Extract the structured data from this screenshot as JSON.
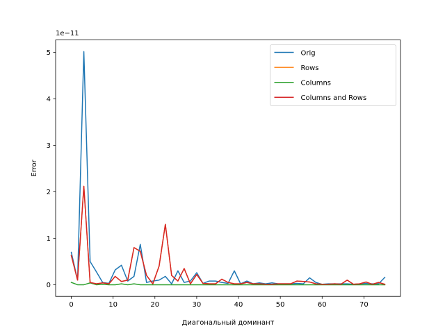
{
  "chart_data": {
    "type": "line",
    "title": "",
    "xlabel": "Диагональный доминант",
    "ylabel": "Error",
    "offset_text": "1e−11",
    "xlim": [
      -3.75,
      78.75
    ],
    "ylim": [
      -0.25,
      5.27
    ],
    "xticks": [
      0,
      10,
      20,
      30,
      40,
      50,
      60,
      70
    ],
    "yticks": [
      0,
      1,
      2,
      3,
      4,
      5
    ],
    "grid": false,
    "legend_position": "top-right",
    "x": [
      0,
      1.5,
      3,
      4.5,
      6,
      7.5,
      9,
      10.5,
      12,
      13.5,
      15,
      16.5,
      18,
      19.5,
      21,
      22.5,
      24,
      25.5,
      27,
      28.5,
      30,
      31.5,
      33,
      34.5,
      36,
      37.5,
      39,
      40.5,
      42,
      43.5,
      45,
      46.5,
      48,
      49.5,
      51,
      52.5,
      54,
      55.5,
      57,
      58.5,
      60,
      61.5,
      63,
      64.5,
      66,
      67.5,
      69,
      70.5,
      72,
      73.5,
      75
    ],
    "series": [
      {
        "name": "Orig",
        "color": "#1f77b4",
        "values": [
          0.7,
          0.1,
          5.02,
          0.5,
          0.28,
          0.05,
          0.03,
          0.32,
          0.42,
          0.08,
          0.18,
          0.87,
          0.05,
          0.08,
          0.1,
          0.18,
          0.02,
          0.3,
          0.05,
          0.08,
          0.26,
          0.03,
          0.08,
          0.08,
          0.05,
          0.03,
          0.3,
          0.02,
          0.08,
          0.02,
          0.04,
          0.02,
          0.04,
          0.02,
          0.02,
          0.02,
          0.03,
          0.02,
          0.15,
          0.05,
          0.01,
          0.02,
          0.02,
          0.02,
          0.02,
          0.01,
          0.02,
          0.03,
          0.02,
          0.02,
          0.16
        ]
      },
      {
        "name": "Rows",
        "color": "#ff7f0e",
        "values": [
          0.63,
          0.1,
          2.12,
          0.05,
          0.02,
          0.04,
          0.02,
          0.18,
          0.07,
          0.1,
          0.8,
          0.72,
          0.2,
          0.02,
          0.4,
          1.3,
          0.2,
          0.08,
          0.35,
          0.02,
          0.22,
          0.03,
          0.02,
          0.02,
          0.12,
          0.05,
          0.02,
          0.02,
          0.05,
          0.02,
          0.02,
          0.01,
          0.01,
          0.02,
          0.02,
          0.02,
          0.08,
          0.07,
          0.06,
          0.02,
          0.01,
          0.01,
          0.02,
          0.01,
          0.1,
          0.01,
          0.02,
          0.06,
          0.01,
          0.05,
          0.01
        ]
      },
      {
        "name": "Columns",
        "color": "#2ca02c",
        "values": [
          0.05,
          0.0,
          0.0,
          0.04,
          0.0,
          0.01,
          0.0,
          0.0,
          0.02,
          0.0,
          0.02,
          0.0,
          0.0,
          0.0,
          0.0,
          0.0,
          0.0,
          0.0,
          0.0,
          0.0,
          0.0,
          0.0,
          0.0,
          0.0,
          0.0,
          0.0,
          0.0,
          0.0,
          0.0,
          0.0,
          0.0,
          0.0,
          0.0,
          0.0,
          0.0,
          0.0,
          0.0,
          0.0,
          0.0,
          0.0,
          0.0,
          0.0,
          0.0,
          0.0,
          0.0,
          0.0,
          0.0,
          0.0,
          0.0,
          0.0,
          0.0
        ]
      },
      {
        "name": "Columns and Rows",
        "color": "#d62728",
        "values": [
          0.63,
          0.1,
          2.12,
          0.05,
          0.02,
          0.04,
          0.02,
          0.18,
          0.07,
          0.1,
          0.8,
          0.72,
          0.2,
          0.02,
          0.4,
          1.3,
          0.2,
          0.08,
          0.35,
          0.02,
          0.22,
          0.03,
          0.02,
          0.02,
          0.12,
          0.05,
          0.02,
          0.02,
          0.05,
          0.02,
          0.02,
          0.01,
          0.01,
          0.02,
          0.02,
          0.02,
          0.08,
          0.07,
          0.06,
          0.02,
          0.01,
          0.01,
          0.02,
          0.01,
          0.1,
          0.01,
          0.02,
          0.06,
          0.01,
          0.05,
          0.01
        ]
      }
    ]
  }
}
